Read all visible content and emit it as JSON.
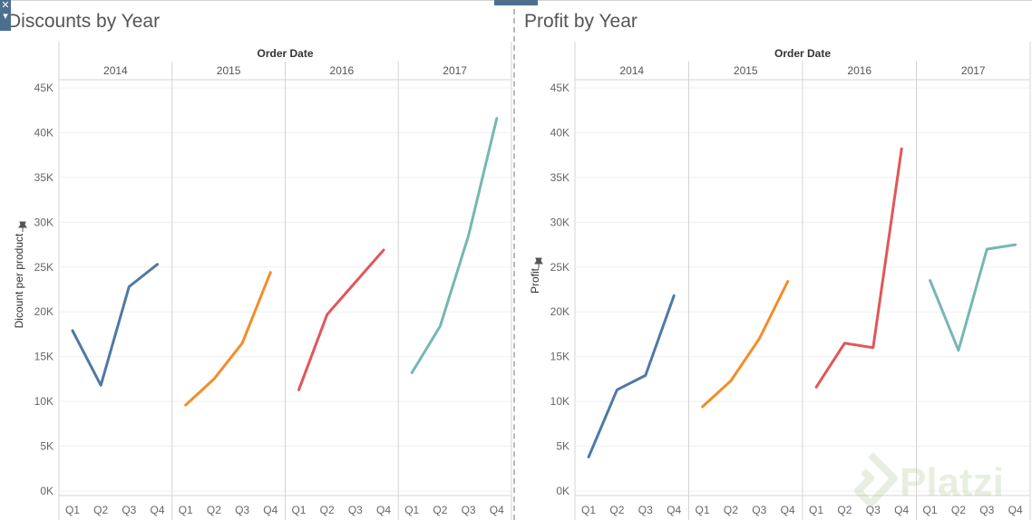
{
  "chart_data": [
    {
      "type": "line",
      "title": "Discounts by Year",
      "header": "Order Date",
      "ylabel": "Dicount per product",
      "years": [
        "2014",
        "2015",
        "2016",
        "2017"
      ],
      "quarters": [
        "Q1",
        "Q2",
        "Q3",
        "Q4"
      ],
      "ylim": [
        0,
        45000
      ],
      "yticks": [
        0,
        5000,
        10000,
        15000,
        20000,
        25000,
        30000,
        35000,
        40000,
        45000
      ],
      "ytick_labels": [
        "0K",
        "5K",
        "10K",
        "15K",
        "20K",
        "25K",
        "30K",
        "35K",
        "40K",
        "45K"
      ],
      "grid": true,
      "series": [
        {
          "year": "2014",
          "color": "#4e79a7",
          "values": [
            17900,
            11800,
            22800,
            25300
          ]
        },
        {
          "year": "2015",
          "color": "#f28e2b",
          "values": [
            9600,
            12500,
            16500,
            24400
          ]
        },
        {
          "year": "2016",
          "color": "#e15759",
          "values": [
            11300,
            19700,
            23300,
            26900
          ]
        },
        {
          "year": "2017",
          "color": "#76b7b2",
          "values": [
            13200,
            18400,
            28500,
            41600
          ]
        }
      ]
    },
    {
      "type": "line",
      "title": "Profit by Year",
      "header": "Order Date",
      "ylabel": "Profit",
      "years": [
        "2014",
        "2015",
        "2016",
        "2017"
      ],
      "quarters": [
        "Q1",
        "Q2",
        "Q3",
        "Q4"
      ],
      "ylim": [
        0,
        45000
      ],
      "yticks": [
        0,
        5000,
        10000,
        15000,
        20000,
        25000,
        30000,
        35000,
        40000,
        45000
      ],
      "ytick_labels": [
        "0K",
        "5K",
        "10K",
        "15K",
        "20K",
        "25K",
        "30K",
        "35K",
        "40K",
        "45K"
      ],
      "grid": true,
      "series": [
        {
          "year": "2014",
          "color": "#4e79a7",
          "values": [
            3800,
            11300,
            12900,
            21800
          ]
        },
        {
          "year": "2015",
          "color": "#f28e2b",
          "values": [
            9400,
            12300,
            17000,
            23400
          ]
        },
        {
          "year": "2016",
          "color": "#e15759",
          "values": [
            11600,
            16500,
            16000,
            38200
          ]
        },
        {
          "year": "2017",
          "color": "#76b7b2",
          "values": [
            23500,
            15700,
            27000,
            27500
          ]
        }
      ]
    }
  ],
  "watermark": {
    "text": "Platzi"
  }
}
